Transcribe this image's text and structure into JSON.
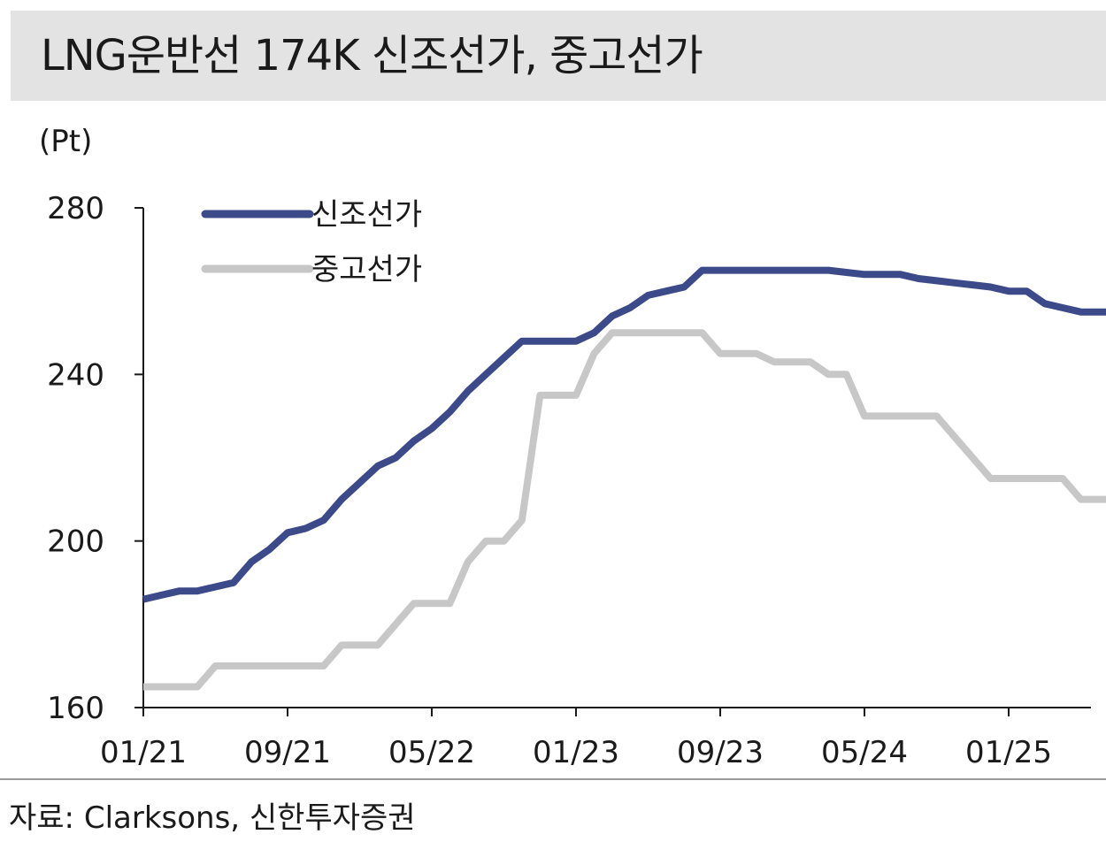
{
  "header": {
    "title": "LNG운반선 174K 신조선가, 중고선가"
  },
  "unit_label": "(Pt)",
  "source": "자료: Clarksons, 신한투자증권",
  "colors": {
    "new_build": "#3d4a8a",
    "second_hand": "#c7c7c7",
    "axis": "#1a1a1a"
  },
  "chart_data": {
    "type": "line",
    "title": "LNG운반선 174K 신조선가, 중고선가",
    "ylabel": "(Pt)",
    "ylim": [
      160,
      280
    ],
    "yticks": [
      160,
      200,
      240,
      280
    ],
    "xlim": [
      "2021-01",
      "2025-07"
    ],
    "xticks": [
      "01/21",
      "09/21",
      "05/22",
      "01/23",
      "09/23",
      "05/24",
      "01/25"
    ],
    "legend": "top-left",
    "grid": false,
    "series": [
      {
        "name": "신조선가",
        "color": "#3d4a8a",
        "points": [
          [
            "2021-01",
            186
          ],
          [
            "2021-02",
            187
          ],
          [
            "2021-03",
            188
          ],
          [
            "2021-04",
            188
          ],
          [
            "2021-05",
            189
          ],
          [
            "2021-06",
            190
          ],
          [
            "2021-07",
            195
          ],
          [
            "2021-08",
            198
          ],
          [
            "2021-09",
            202
          ],
          [
            "2021-10",
            203
          ],
          [
            "2021-11",
            205
          ],
          [
            "2021-12",
            210
          ],
          [
            "2022-01",
            214
          ],
          [
            "2022-02",
            218
          ],
          [
            "2022-03",
            220
          ],
          [
            "2022-04",
            224
          ],
          [
            "2022-05",
            227
          ],
          [
            "2022-06",
            231
          ],
          [
            "2022-07",
            236
          ],
          [
            "2022-08",
            240
          ],
          [
            "2022-09",
            244
          ],
          [
            "2022-10",
            248
          ],
          [
            "2022-11",
            248
          ],
          [
            "2022-12",
            248
          ],
          [
            "2023-01",
            248
          ],
          [
            "2023-02",
            250
          ],
          [
            "2023-03",
            254
          ],
          [
            "2023-04",
            256
          ],
          [
            "2023-05",
            259
          ],
          [
            "2023-06",
            260
          ],
          [
            "2023-07",
            261
          ],
          [
            "2023-08",
            265
          ],
          [
            "2023-09",
            265
          ],
          [
            "2023-10",
            265
          ],
          [
            "2023-11",
            265
          ],
          [
            "2023-12",
            265
          ],
          [
            "2024-01",
            265
          ],
          [
            "2024-02",
            265
          ],
          [
            "2024-03",
            265
          ],
          [
            "2024-04",
            264.5
          ],
          [
            "2024-05",
            264
          ],
          [
            "2024-06",
            264
          ],
          [
            "2024-07",
            264
          ],
          [
            "2024-08",
            263
          ],
          [
            "2024-09",
            262.5
          ],
          [
            "2024-10",
            262
          ],
          [
            "2024-11",
            261.5
          ],
          [
            "2024-12",
            261
          ],
          [
            "2025-01",
            260
          ],
          [
            "2025-02",
            260
          ],
          [
            "2025-03",
            257
          ],
          [
            "2025-04",
            256
          ],
          [
            "2025-05",
            255
          ],
          [
            "2025-06",
            255
          ],
          [
            "2025-07",
            255
          ]
        ]
      },
      {
        "name": "중고선가",
        "color": "#c7c7c7",
        "points": [
          [
            "2021-01",
            165
          ],
          [
            "2021-02",
            165
          ],
          [
            "2021-03",
            165
          ],
          [
            "2021-04",
            165
          ],
          [
            "2021-05",
            170
          ],
          [
            "2021-06",
            170
          ],
          [
            "2021-07",
            170
          ],
          [
            "2021-08",
            170
          ],
          [
            "2021-09",
            170
          ],
          [
            "2021-10",
            170
          ],
          [
            "2021-11",
            170
          ],
          [
            "2021-12",
            175
          ],
          [
            "2022-01",
            175
          ],
          [
            "2022-02",
            175
          ],
          [
            "2022-03",
            180
          ],
          [
            "2022-04",
            185
          ],
          [
            "2022-05",
            185
          ],
          [
            "2022-06",
            185
          ],
          [
            "2022-07",
            195
          ],
          [
            "2022-08",
            200
          ],
          [
            "2022-09",
            200
          ],
          [
            "2022-10",
            205
          ],
          [
            "2022-11",
            235
          ],
          [
            "2022-12",
            235
          ],
          [
            "2023-01",
            235
          ],
          [
            "2023-02",
            245
          ],
          [
            "2023-03",
            250
          ],
          [
            "2023-04",
            250
          ],
          [
            "2023-05",
            250
          ],
          [
            "2023-06",
            250
          ],
          [
            "2023-07",
            250
          ],
          [
            "2023-08",
            250
          ],
          [
            "2023-09",
            245
          ],
          [
            "2023-10",
            245
          ],
          [
            "2023-11",
            245
          ],
          [
            "2023-12",
            243
          ],
          [
            "2024-01",
            243
          ],
          [
            "2024-02",
            243
          ],
          [
            "2024-03",
            240
          ],
          [
            "2024-04",
            240
          ],
          [
            "2024-05",
            230
          ],
          [
            "2024-06",
            230
          ],
          [
            "2024-07",
            230
          ],
          [
            "2024-08",
            230
          ],
          [
            "2024-09",
            230
          ],
          [
            "2024-10",
            225
          ],
          [
            "2024-11",
            220
          ],
          [
            "2024-12",
            215
          ],
          [
            "2025-01",
            215
          ],
          [
            "2025-02",
            215
          ],
          [
            "2025-03",
            215
          ],
          [
            "2025-04",
            215
          ],
          [
            "2025-05",
            210
          ],
          [
            "2025-06",
            210
          ],
          [
            "2025-07",
            210
          ]
        ]
      }
    ]
  }
}
